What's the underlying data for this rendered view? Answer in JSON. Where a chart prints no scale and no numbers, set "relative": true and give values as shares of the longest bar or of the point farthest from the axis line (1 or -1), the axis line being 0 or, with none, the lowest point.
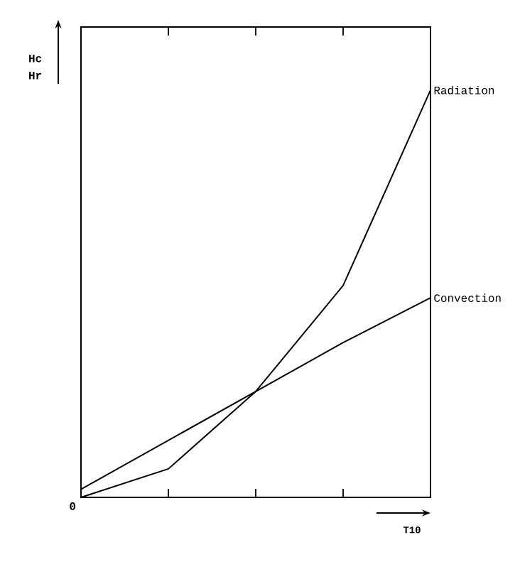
{
  "chart_data": {
    "type": "line",
    "relative": true,
    "ylabel": "Hc Hr",
    "xlabel": "T10",
    "annotations": [
      "0"
    ],
    "categories": [
      null,
      null,
      null,
      null,
      null
    ],
    "series": [
      {
        "name": "Radiation",
        "color": "#000000",
        "values": [
          0,
          0.07,
          0.26,
          0.52,
          1
        ]
      },
      {
        "name": "Convection",
        "color": "#000000",
        "values": [
          0.02,
          0.14,
          0.26,
          0.38,
          0.49
        ]
      }
    ],
    "legend": false,
    "marker": "none",
    "line_style": "solid",
    "grid": false
  }
}
